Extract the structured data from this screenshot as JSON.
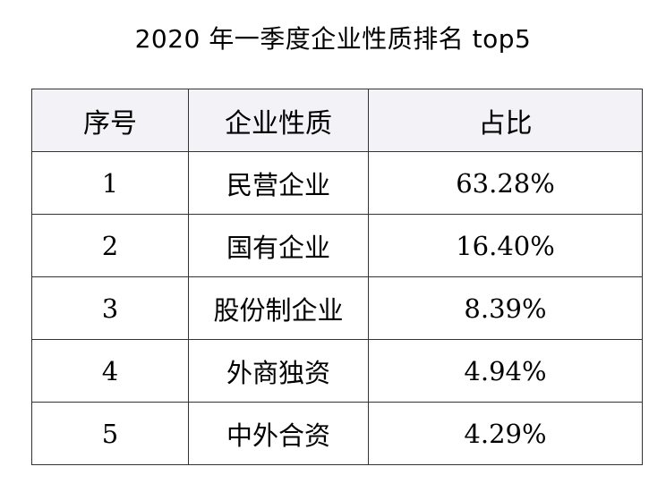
{
  "title": "2020 年一季度企业性质排名 top5",
  "table": {
    "headers": [
      "序号",
      "企业性质",
      "占比"
    ],
    "rows": [
      {
        "rank": "1",
        "type": "民营企业",
        "share": "63.28%"
      },
      {
        "rank": "2",
        "type": "国有企业",
        "share": "16.40%"
      },
      {
        "rank": "3",
        "type": "股份制企业",
        "share": "8.39%"
      },
      {
        "rank": "4",
        "type": "外商独资",
        "share": "4.94%"
      },
      {
        "rank": "5",
        "type": "中外合资",
        "share": "4.29%"
      }
    ]
  }
}
